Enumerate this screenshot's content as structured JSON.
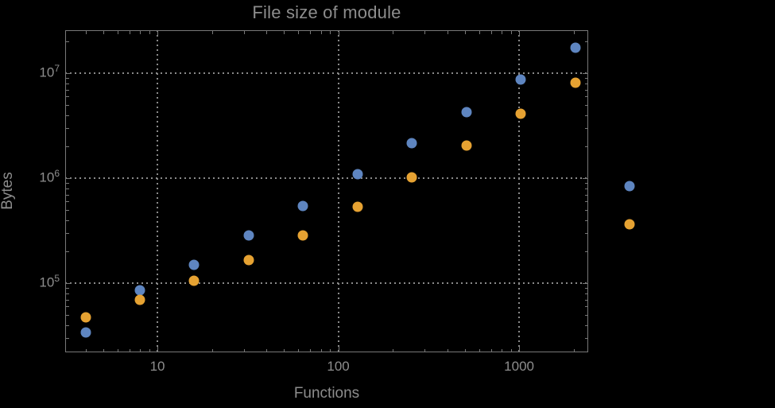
{
  "colors": {
    "background": "#000000",
    "frame": "#787878",
    "grid": "#8a8a8a",
    "text": "#8d8d8d",
    "series_blue": "#5e85c0",
    "series_orange": "#e6a232"
  },
  "chart_data": {
    "type": "scatter",
    "title": "File size of module",
    "xlabel": "Functions",
    "ylabel": "Bytes",
    "x_scale": "log",
    "y_scale": "log",
    "xlim": [
      3.09,
      2410
    ],
    "ylim": [
      22000,
      25700000
    ],
    "grid": "dotted lines at decade ticks, both axes",
    "legend": "none",
    "x_ticks": [
      {
        "value": 10,
        "label": "10"
      },
      {
        "value": 100,
        "label": "100"
      },
      {
        "value": 1000,
        "label": "1000"
      }
    ],
    "y_ticks": [
      {
        "value": 100000,
        "base": "10",
        "exp": "5"
      },
      {
        "value": 1000000,
        "base": "10",
        "exp": "6"
      },
      {
        "value": 10000000,
        "base": "10",
        "exp": "7"
      }
    ],
    "x": [
      4,
      8,
      16,
      32,
      64,
      128,
      256,
      512,
      1024,
      2048,
      4096
    ],
    "series": [
      {
        "name": "blue",
        "color": "#5e85c0",
        "values": [
          34000,
          86000,
          150000,
          285000,
          540000,
          1100000,
          2150000,
          4300000,
          8700000,
          17500000,
          840000
        ]
      },
      {
        "name": "orange",
        "color": "#e6a232",
        "values": [
          47000,
          69000,
          105000,
          166000,
          287000,
          533000,
          1020000,
          2050000,
          4100000,
          8100000,
          364000
        ]
      }
    ]
  }
}
